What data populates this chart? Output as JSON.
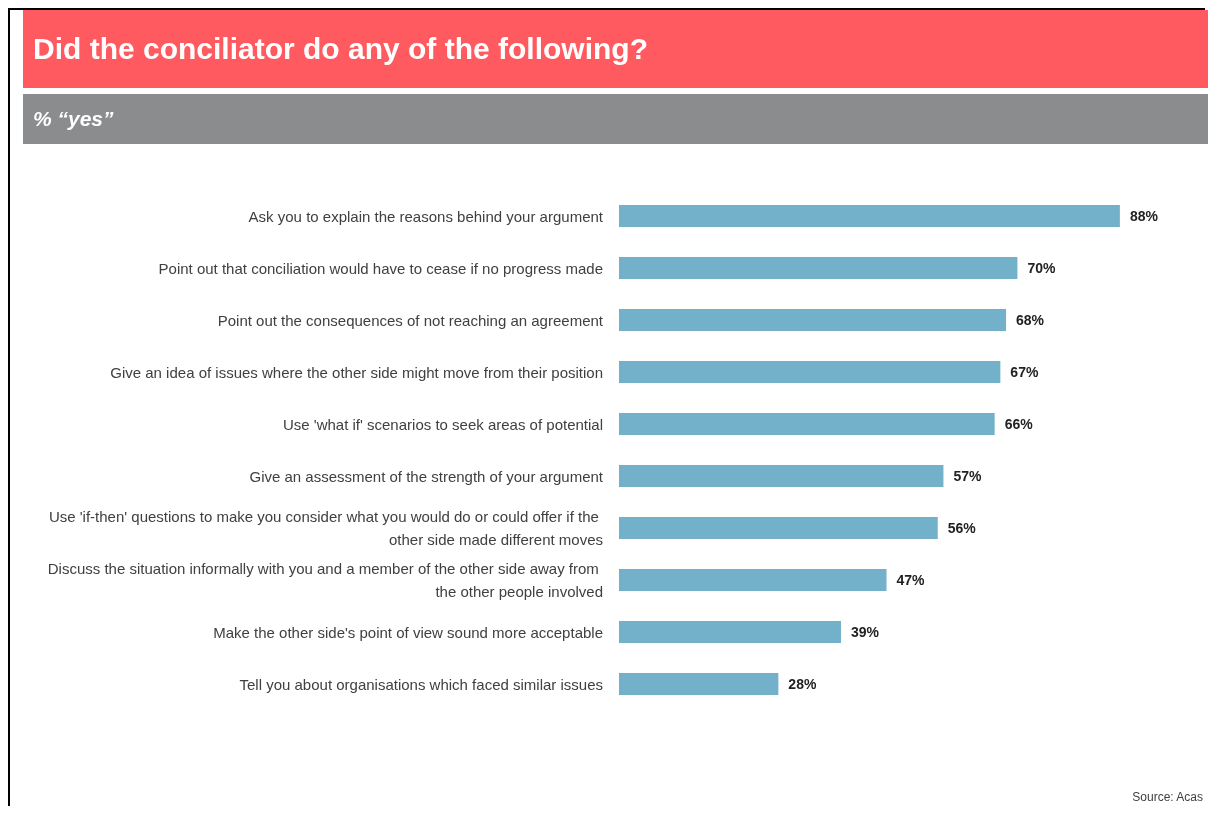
{
  "chart_data": {
    "type": "bar",
    "orientation": "horizontal",
    "title": "Did the conciliator do any of the following?",
    "subtitle": "% “yes”",
    "categories": [
      "Ask you to explain the reasons behind your argument",
      "Point out that conciliation would have to cease if no progress made",
      "Point out the consequences of not reaching an agreement",
      "Give an idea of issues where the other side might move from their position",
      "Use 'what if' scenarios to seek areas of potential",
      "Give an assessment of the strength of your argument",
      "Use 'if-then' questions to make you consider what you would do or could offer if the other side made different moves",
      "Discuss the situation informally with you and a member of the other side away from the other people involved",
      "Make the other side's point of view sound more acceptable",
      "Tell you about organisations which faced similar issues"
    ],
    "values": [
      88,
      70,
      68,
      67,
      66,
      57,
      56,
      47,
      39,
      28
    ],
    "value_labels": [
      "88%",
      "70%",
      "68%",
      "67%",
      "66%",
      "57%",
      "56%",
      "47%",
      "39%",
      "28%"
    ],
    "color": "#72b1c9",
    "annotations": [
      "Source: Acas"
    ]
  }
}
